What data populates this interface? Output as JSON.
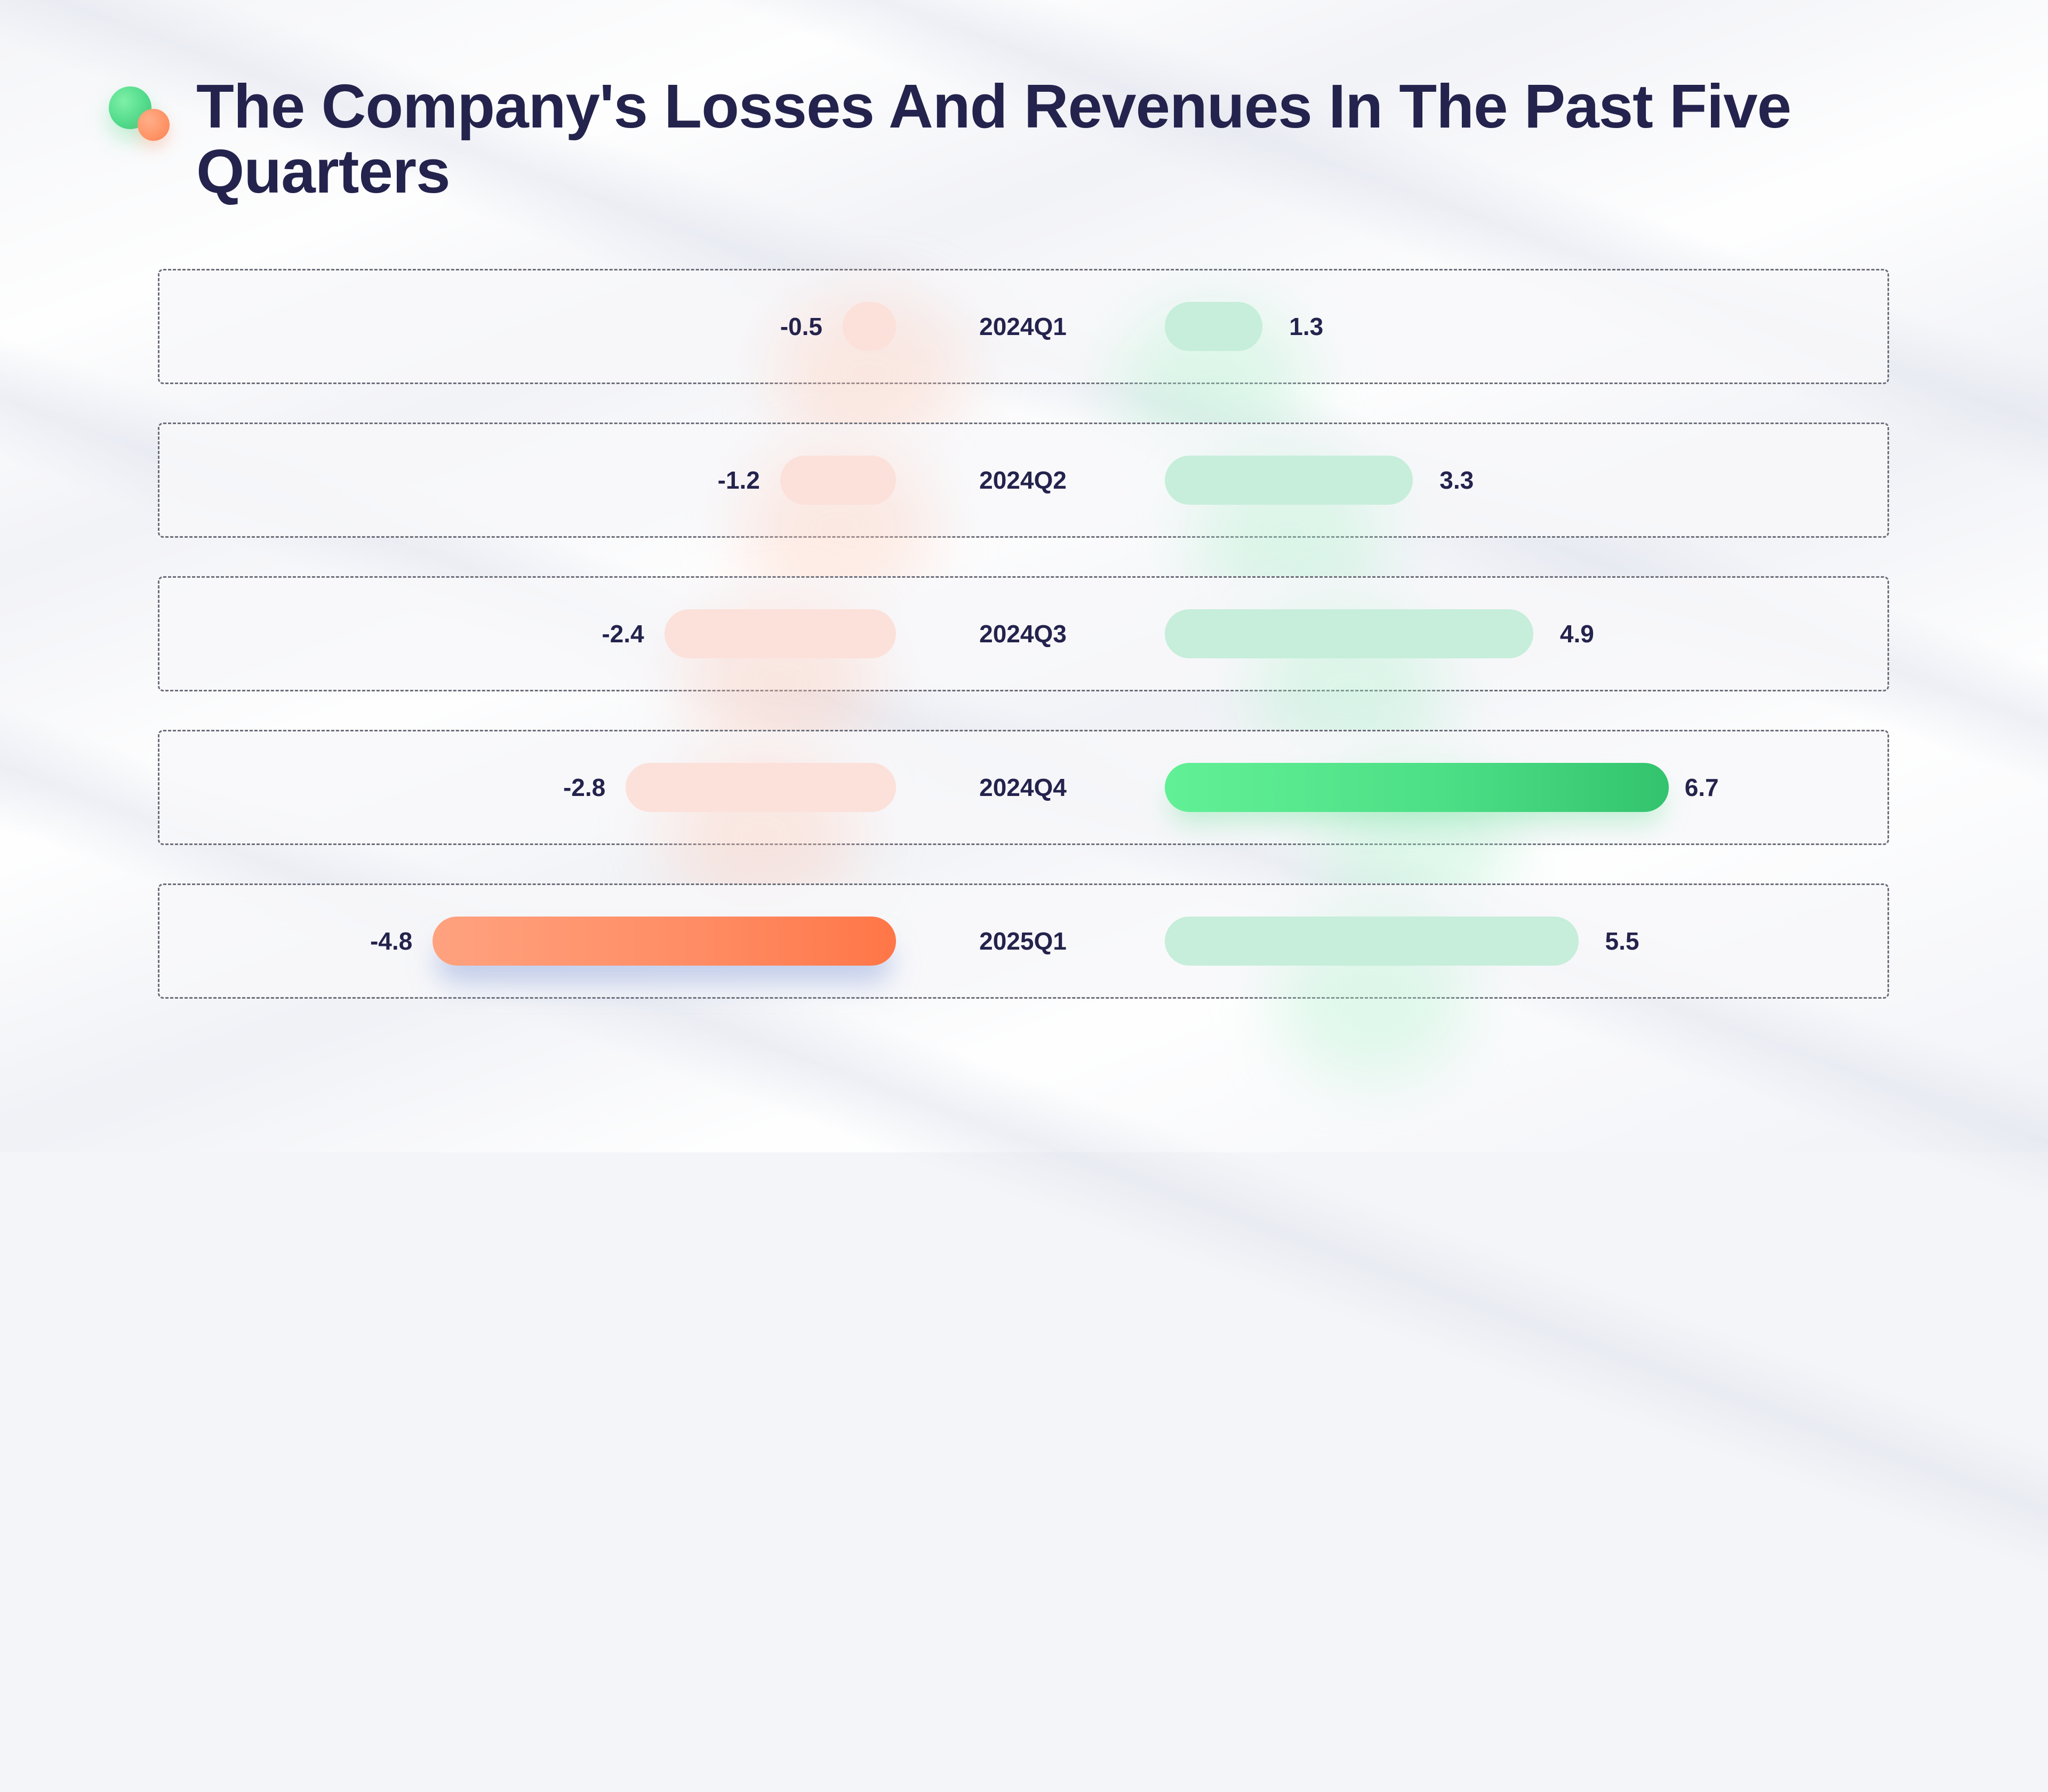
{
  "title": "The Company's Losses And Revenues In The Past Five Quarters",
  "logo": {
    "icon": "two-dots-logo-icon",
    "colors": [
      "#4fd98a",
      "#ff8f61"
    ]
  },
  "colors": {
    "loss_muted": "#fbe1da",
    "loss_highlight": "#ff8b62",
    "revenue_muted": "#c6eeda",
    "revenue_highlight": "#4ddf86",
    "text": "#24234d"
  },
  "chart_data": {
    "type": "bar",
    "orientation": "diverging-horizontal",
    "title": "The Company's Losses And Revenues In The Past Five Quarters",
    "categories": [
      "2024Q1",
      "2024Q2",
      "2024Q3",
      "2024Q4",
      "2025Q1"
    ],
    "series": [
      {
        "values": [
          -0.5,
          -1.2,
          -2.4,
          -2.8,
          -4.8
        ],
        "labels": [
          "-0.5",
          "-1.2",
          "-2.4",
          "-2.8",
          "-4.8"
        ],
        "highlight_index": 4
      },
      {
        "values": [
          1.3,
          3.3,
          4.9,
          6.7,
          5.5
        ],
        "labels": [
          "1.3",
          "3.3",
          "4.9",
          "6.7",
          "5.5"
        ],
        "highlight_index": 3
      }
    ],
    "grid": false,
    "legend": "none"
  }
}
